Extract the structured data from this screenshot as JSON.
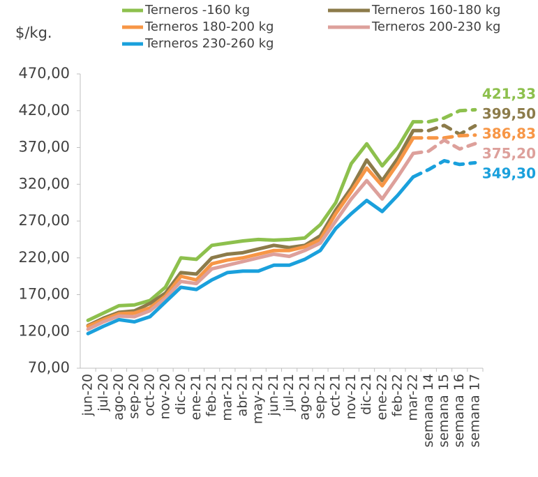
{
  "chart_data": {
    "type": "line",
    "y_label": "$/kg.",
    "categories": [
      "jun-20",
      "jul-20",
      "ago-20",
      "sep-20",
      "oct-20",
      "nov-20",
      "dic-20",
      "ene-21",
      "feb-21",
      "mar-21",
      "abr-21",
      "may-21",
      "jun-21",
      "jul-21",
      "ago-21",
      "sep-21",
      "oct-21",
      "nov-21",
      "dic-21",
      "ene-22",
      "feb-22",
      "mar-22",
      "semana 14",
      "semana 15",
      "semana 16",
      "semana 17"
    ],
    "dashed_from": 21,
    "series": [
      {
        "name": "Terneros -160 kg",
        "color": "#8dc04d",
        "values": [
          135,
          145,
          155,
          156,
          162,
          180,
          220,
          218,
          237,
          240,
          243,
          245,
          244,
          245,
          247,
          265,
          295,
          348,
          375,
          345,
          370,
          405,
          405,
          410,
          420,
          421.33
        ],
        "value_labels": [
          null,
          null,
          null,
          null,
          null,
          null,
          null,
          null,
          null,
          null,
          null,
          null,
          null,
          null,
          null,
          null,
          null,
          null,
          null,
          null,
          null,
          null,
          null,
          null,
          null,
          "421,33"
        ]
      },
      {
        "name": "Terneros 160-180 kg",
        "color": "#8c7b4a",
        "values": [
          128,
          138,
          146,
          148,
          158,
          172,
          200,
          198,
          220,
          225,
          227,
          232,
          237,
          234,
          237,
          250,
          285,
          315,
          353,
          325,
          355,
          393,
          393,
          400,
          388,
          399.5
        ],
        "value_labels": [
          null,
          null,
          null,
          null,
          null,
          null,
          null,
          null,
          null,
          null,
          null,
          null,
          null,
          null,
          null,
          null,
          null,
          null,
          null,
          null,
          null,
          null,
          null,
          null,
          null,
          "399,50"
        ]
      },
      {
        "name": "Terneros 180-200 kg",
        "color": "#f79646",
        "values": [
          127,
          136,
          144,
          145,
          152,
          168,
          195,
          190,
          212,
          217,
          220,
          225,
          230,
          230,
          235,
          245,
          280,
          310,
          342,
          318,
          348,
          383,
          383,
          383,
          386,
          386.83
        ],
        "value_labels": [
          null,
          null,
          null,
          null,
          null,
          null,
          null,
          null,
          null,
          null,
          null,
          null,
          null,
          null,
          null,
          null,
          null,
          null,
          null,
          null,
          null,
          null,
          null,
          null,
          null,
          "386,83"
        ]
      },
      {
        "name": "Terneros 200-230 kg",
        "color": "#dda09b",
        "values": [
          123,
          133,
          141,
          140,
          148,
          165,
          188,
          185,
          205,
          210,
          215,
          220,
          225,
          222,
          230,
          240,
          270,
          300,
          325,
          300,
          330,
          362,
          365,
          380,
          368,
          375.2
        ],
        "value_labels": [
          null,
          null,
          null,
          null,
          null,
          null,
          null,
          null,
          null,
          null,
          null,
          null,
          null,
          null,
          null,
          null,
          null,
          null,
          null,
          null,
          null,
          null,
          null,
          null,
          null,
          "375,20"
        ]
      },
      {
        "name": "Terneros 230-260 kg",
        "color": "#1aa0dc",
        "values": [
          117,
          127,
          136,
          133,
          140,
          160,
          180,
          177,
          190,
          200,
          202,
          202,
          210,
          210,
          218,
          230,
          260,
          280,
          298,
          283,
          305,
          330,
          340,
          352,
          347,
          349.3
        ],
        "value_labels": [
          null,
          null,
          null,
          null,
          null,
          null,
          null,
          null,
          null,
          null,
          null,
          null,
          null,
          null,
          null,
          null,
          null,
          null,
          null,
          null,
          null,
          null,
          null,
          null,
          null,
          "349,30"
        ]
      }
    ],
    "ylim": [
      70,
      470
    ],
    "yticks": [
      {
        "value": 70,
        "label": "70,00"
      },
      {
        "value": 120,
        "label": "120,00"
      },
      {
        "value": 170,
        "label": "170,00"
      },
      {
        "value": 220,
        "label": "220,00"
      },
      {
        "value": 270,
        "label": "270,00"
      },
      {
        "value": 320,
        "label": "320,00"
      },
      {
        "value": 370,
        "label": "370,00"
      },
      {
        "value": 420,
        "label": "420,00"
      },
      {
        "value": 470,
        "label": "470,00"
      }
    ],
    "grid": false
  }
}
